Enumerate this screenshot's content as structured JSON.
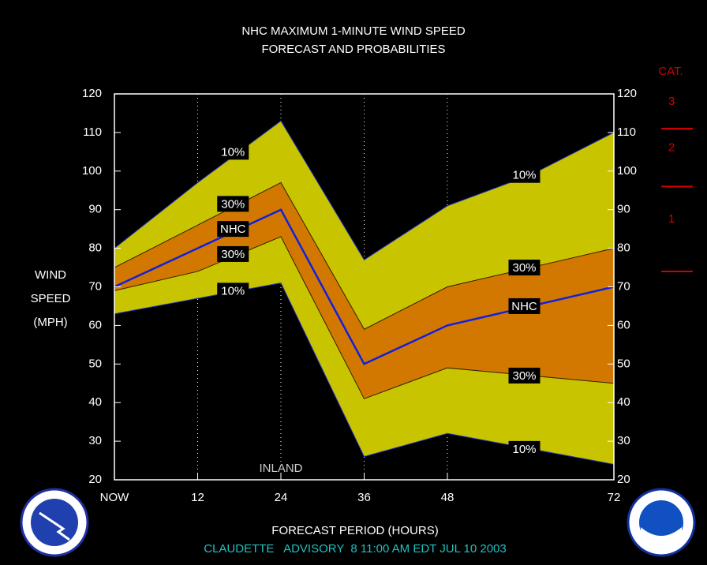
{
  "chart_data": {
    "type": "band-line",
    "title": "NHC MAXIMUM 1-MINUTE WIND SPEED",
    "subtitle": "FORECAST AND PROBABILITIES",
    "y_label": [
      "WIND",
      "SPEED",
      "(MPH)"
    ],
    "x_label": "FORECAST PERIOD (HOURS)",
    "footer": "CLAUDETTE   ADVISORY  8 11:00 AM EDT JUL 10 2003",
    "annotation": "INLAND",
    "x": [
      0,
      12,
      24,
      36,
      48,
      60,
      72
    ],
    "xlim": [
      0,
      72
    ],
    "xticks": [
      {
        "value": 0,
        "label": "NOW"
      },
      12,
      24,
      36,
      48,
      72
    ],
    "ylim": [
      20,
      120
    ],
    "yticks": [
      20,
      30,
      40,
      50,
      60,
      70,
      80,
      90,
      100,
      110,
      120
    ],
    "series": [
      {
        "name": "10%",
        "color": "#2030c0",
        "fill": "#c8c400",
        "values": [
          80,
          97,
          113,
          77,
          91,
          99,
          110
        ]
      },
      {
        "name": "30%",
        "color": "#302000",
        "fill": "#d27800",
        "values": [
          75,
          86,
          97,
          59,
          70,
          75,
          80
        ]
      },
      {
        "name": "NHC",
        "color": "#1020e0",
        "values": [
          70,
          80,
          90,
          50,
          60,
          65,
          70
        ]
      },
      {
        "name": "30%",
        "color": "#302000",
        "values": [
          69,
          74,
          83,
          41,
          49,
          47,
          45
        ]
      },
      {
        "name": "10%",
        "color": "#2030c0",
        "values": [
          63,
          67,
          71,
          26,
          32,
          28,
          24
        ]
      }
    ],
    "category_scale": {
      "title": "CAT.",
      "color": "#d00000",
      "levels": [
        {
          "label": "1",
          "min": 74
        },
        {
          "label": "2",
          "min": 96
        },
        {
          "label": "3",
          "min": 111
        }
      ]
    }
  }
}
